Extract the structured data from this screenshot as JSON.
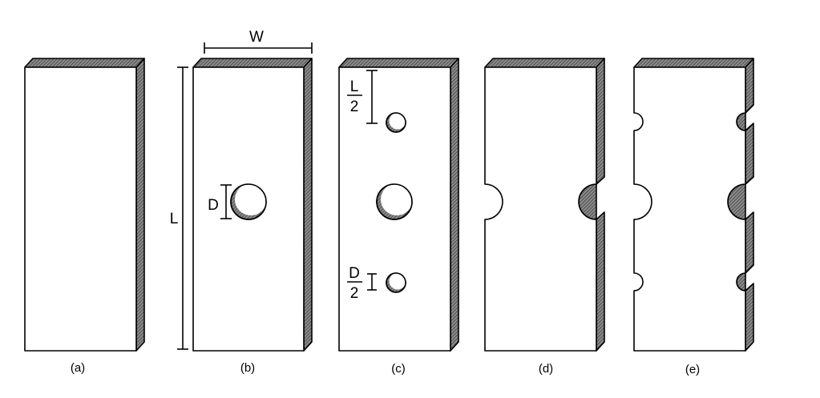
{
  "figure": {
    "captions": {
      "a": "(a)",
      "b": "(b)",
      "c": "(c)",
      "d": "(d)",
      "e": "(e)"
    },
    "dimensions": {
      "width": "W",
      "length": "L",
      "diameter": "D",
      "half_length_num": "L",
      "half_length_den": "2",
      "half_diameter_num": "D",
      "half_diameter_den": "2"
    }
  }
}
